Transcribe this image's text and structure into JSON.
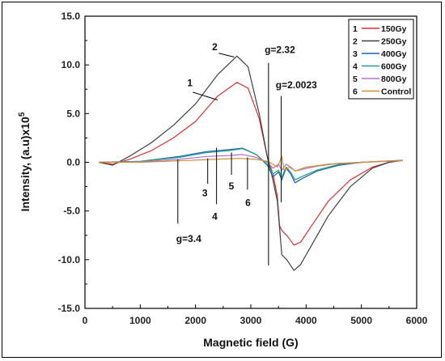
{
  "chart_data": {
    "type": "line",
    "xlabel": "Magnetic field (G)",
    "ylabel": "Intensity, (a.u)x10",
    "ylabel_sup": "5",
    "xlim": [
      0,
      6000
    ],
    "ylim": [
      -15,
      15
    ],
    "x_ticks": [
      0,
      1000,
      2000,
      3000,
      4000,
      5000,
      6000
    ],
    "y_ticks": [
      15,
      10,
      5,
      0,
      -5,
      -10,
      -15
    ],
    "y_tick_labels": [
      "15.0",
      "10.0",
      "5.0",
      "0.0",
      "-5.0",
      "-10.0",
      "-15.0"
    ],
    "legend_position": "top-right",
    "series": [
      {
        "id": "1",
        "name": "150Gy",
        "color": "#e03030",
        "points": [
          [
            250,
            0
          ],
          [
            500,
            -0.2
          ],
          [
            800,
            0.3
          ],
          [
            1200,
            1.2
          ],
          [
            1600,
            2.5
          ],
          [
            2000,
            4.2
          ],
          [
            2400,
            6.8
          ],
          [
            2750,
            8.2
          ],
          [
            2950,
            7.6
          ],
          [
            3150,
            4.5
          ],
          [
            3300,
            0.5
          ],
          [
            3400,
            -1.2
          ],
          [
            3480,
            -3.5
          ],
          [
            3520,
            -6.5
          ],
          [
            3560,
            -7
          ],
          [
            3650,
            -7.5
          ],
          [
            3780,
            -8.5
          ],
          [
            3900,
            -8.2
          ],
          [
            4100,
            -6.5
          ],
          [
            4400,
            -4
          ],
          [
            4800,
            -1.8
          ],
          [
            5200,
            -0.5
          ],
          [
            5500,
            0
          ],
          [
            5750,
            0.2
          ]
        ]
      },
      {
        "id": "2",
        "name": "250Gy",
        "color": "#404040",
        "points": [
          [
            250,
            0
          ],
          [
            500,
            -0.3
          ],
          [
            800,
            0.6
          ],
          [
            1200,
            2
          ],
          [
            1600,
            3.8
          ],
          [
            2000,
            6
          ],
          [
            2400,
            9
          ],
          [
            2750,
            10.9
          ],
          [
            2950,
            9.8
          ],
          [
            3150,
            5
          ],
          [
            3300,
            0.5
          ],
          [
            3400,
            -1.8
          ],
          [
            3480,
            -4
          ],
          [
            3560,
            -9.5
          ],
          [
            3650,
            -10
          ],
          [
            3780,
            -11.1
          ],
          [
            3900,
            -10.5
          ],
          [
            4100,
            -8.5
          ],
          [
            4400,
            -5.5
          ],
          [
            4800,
            -2.5
          ],
          [
            5200,
            -0.6
          ],
          [
            5500,
            0
          ],
          [
            5750,
            0.2
          ]
        ]
      },
      {
        "id": "3",
        "name": "400Gy",
        "color": "#2060c0",
        "points": [
          [
            250,
            0
          ],
          [
            1000,
            0.1
          ],
          [
            1700,
            0.6
          ],
          [
            2200,
            1.1
          ],
          [
            2600,
            1.3
          ],
          [
            2850,
            1.45
          ],
          [
            3100,
            0.8
          ],
          [
            3300,
            -0.3
          ],
          [
            3400,
            -1.5
          ],
          [
            3500,
            -1
          ],
          [
            3560,
            -1.8
          ],
          [
            3640,
            -0.6
          ],
          [
            3720,
            -1.2
          ],
          [
            3800,
            -2.1
          ],
          [
            3950,
            -1.6
          ],
          [
            4200,
            -0.9
          ],
          [
            4600,
            -0.3
          ],
          [
            5000,
            0
          ],
          [
            5750,
            0.2
          ]
        ]
      },
      {
        "id": "4",
        "name": "600Gy",
        "color": "#20a080",
        "points": [
          [
            250,
            0
          ],
          [
            1000,
            0.1
          ],
          [
            1700,
            0.5
          ],
          [
            2200,
            1
          ],
          [
            2600,
            1.2
          ],
          [
            2850,
            1.4
          ],
          [
            3100,
            0.8
          ],
          [
            3300,
            -0.2
          ],
          [
            3400,
            -1.2
          ],
          [
            3500,
            -0.8
          ],
          [
            3560,
            -1.5
          ],
          [
            3640,
            -0.5
          ],
          [
            3720,
            -1
          ],
          [
            3800,
            -1.8
          ],
          [
            3950,
            -1.4
          ],
          [
            4200,
            -0.8
          ],
          [
            4600,
            -0.2
          ],
          [
            5000,
            0
          ],
          [
            5750,
            0.2
          ]
        ]
      },
      {
        "id": "5",
        "name": "800Gy",
        "color": "#b070d0",
        "points": [
          [
            250,
            0
          ],
          [
            1000,
            0.05
          ],
          [
            1700,
            0.3
          ],
          [
            2200,
            0.6
          ],
          [
            2600,
            0.7
          ],
          [
            2850,
            0.8
          ],
          [
            3100,
            0.5
          ],
          [
            3300,
            0
          ],
          [
            3400,
            -0.6
          ],
          [
            3500,
            -0.2
          ],
          [
            3560,
            -0.8
          ],
          [
            3640,
            -0.2
          ],
          [
            3720,
            -0.5
          ],
          [
            3800,
            -0.9
          ],
          [
            3950,
            -0.7
          ],
          [
            4200,
            -0.4
          ],
          [
            4600,
            -0.1
          ],
          [
            5000,
            0
          ],
          [
            5750,
            0.2
          ]
        ]
      },
      {
        "id": "6",
        "name": "Control",
        "color": "#d09030",
        "points": [
          [
            250,
            0
          ],
          [
            1000,
            0
          ],
          [
            1700,
            0.15
          ],
          [
            2300,
            0.3
          ],
          [
            2800,
            0.4
          ],
          [
            3100,
            0.3
          ],
          [
            3300,
            0.1
          ],
          [
            3400,
            -0.2
          ],
          [
            3480,
            -0.5
          ],
          [
            3560,
            0.6
          ],
          [
            3600,
            -0.8
          ],
          [
            3700,
            -0.5
          ],
          [
            3800,
            -0.9
          ],
          [
            4000,
            -0.5
          ],
          [
            4400,
            -0.2
          ],
          [
            5000,
            0
          ],
          [
            5750,
            0.15
          ]
        ]
      }
    ],
    "annotations": [
      {
        "text": "2",
        "x": 2300,
        "y": 11.5
      },
      {
        "text": "1",
        "x": 1850,
        "y": 7.8
      },
      {
        "text": "g=2.32",
        "x": 3250,
        "y": 11.2
      },
      {
        "text": "g=2.0023",
        "x": 3450,
        "y": 7.6
      },
      {
        "text": "3",
        "x": 2120,
        "y": -3.5
      },
      {
        "text": "4",
        "x": 2300,
        "y": -5.9
      },
      {
        "text": "5",
        "x": 2600,
        "y": -2.8
      },
      {
        "text": "6",
        "x": 2900,
        "y": -4.5
      },
      {
        "text": "g=3.4",
        "x": 1650,
        "y": -8.2
      }
    ],
    "marker_lines": [
      {
        "x": 1680,
        "y1": 0.3,
        "y2": -6.3
      },
      {
        "x": 2220,
        "y1": 0.4,
        "y2": -2.2
      },
      {
        "x": 2380,
        "y1": 1.5,
        "y2": -4.3
      },
      {
        "x": 2650,
        "y1": 1.0,
        "y2": -1.3
      },
      {
        "x": 2940,
        "y1": 0.5,
        "y2": -2.8
      },
      {
        "x": 3320,
        "y1": 10.2,
        "y2": -10.6
      },
      {
        "x": 3550,
        "y1": 6.8,
        "y2": -4.1
      }
    ],
    "leader_lines": [
      {
        "x1": 2420,
        "y1": 11.2,
        "x2": 2700,
        "y2": 10.8
      },
      {
        "x1": 1950,
        "y1": 7.2,
        "x2": 2400,
        "y2": 6.4
      }
    ]
  }
}
